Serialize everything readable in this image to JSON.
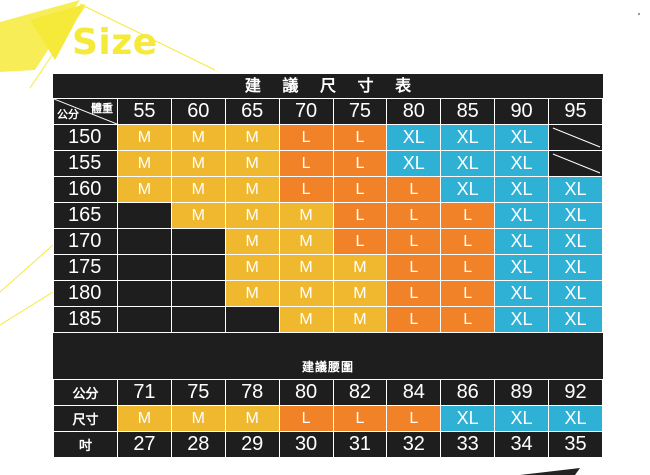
{
  "title": "Size",
  "chart": {
    "title": "建 議 尺 寸 表",
    "corner_weight_label": "體重",
    "corner_height_label": "公分",
    "weights": [
      "55",
      "60",
      "65",
      "70",
      "75",
      "80",
      "85",
      "90",
      "95"
    ],
    "rows": [
      {
        "height": "150",
        "cells": [
          "M",
          "M",
          "M",
          "L",
          "L",
          "XL",
          "XL",
          "XL",
          "/"
        ]
      },
      {
        "height": "155",
        "cells": [
          "M",
          "M",
          "M",
          "L",
          "L",
          "XL",
          "XL",
          "XL",
          "/"
        ]
      },
      {
        "height": "160",
        "cells": [
          "M",
          "M",
          "M",
          "L",
          "L",
          "L",
          "XL",
          "XL",
          "XL"
        ]
      },
      {
        "height": "165",
        "cells": [
          "",
          "M",
          "M",
          "M",
          "L",
          "L",
          "L",
          "XL",
          "XL"
        ]
      },
      {
        "height": "170",
        "cells": [
          "",
          "",
          "M",
          "M",
          "L",
          "L",
          "L",
          "XL",
          "XL"
        ]
      },
      {
        "height": "175",
        "cells": [
          "",
          "",
          "M",
          "M",
          "M",
          "L",
          "L",
          "XL",
          "XL"
        ]
      },
      {
        "height": "180",
        "cells": [
          "",
          "",
          "M",
          "M",
          "M",
          "L",
          "L",
          "XL",
          "XL"
        ]
      },
      {
        "height": "185",
        "cells": [
          "",
          "",
          "",
          "M",
          "M",
          "L",
          "L",
          "XL",
          "XL"
        ]
      }
    ]
  },
  "waist": {
    "title": "建議腰圍",
    "row_labels": {
      "cm": "公分",
      "size": "尺寸",
      "inch": "吋"
    },
    "cm": [
      "71",
      "75",
      "78",
      "80",
      "82",
      "84",
      "86",
      "89",
      "92"
    ],
    "sizes": [
      "M",
      "M",
      "M",
      "L",
      "L",
      "L",
      "XL",
      "XL",
      "XL"
    ],
    "inch": [
      "27",
      "28",
      "29",
      "30",
      "31",
      "32",
      "33",
      "34",
      "35"
    ]
  },
  "colors": {
    "M": "#f0b82e",
    "L": "#f28227",
    "XL": "#2fb1d6",
    "dark": "#1e1e1e",
    "accent": "#f5ea3a"
  }
}
